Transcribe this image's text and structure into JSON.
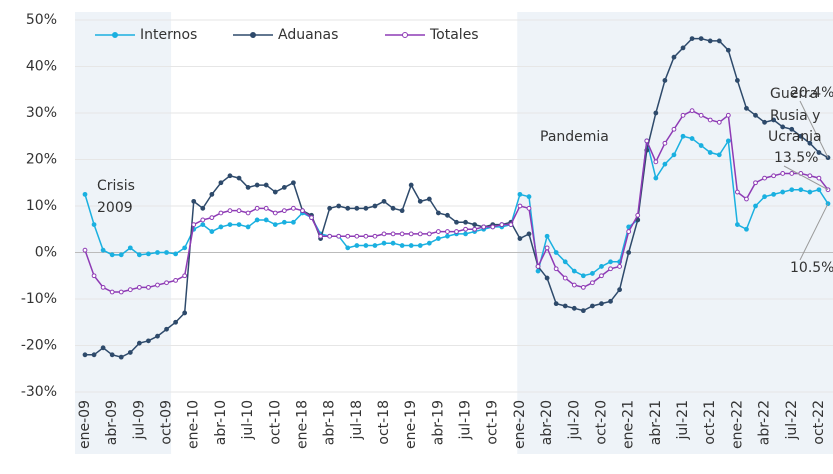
{
  "chart_data": {
    "type": "line",
    "categories": [
      "ene-09",
      null,
      null,
      "abr-09",
      null,
      null,
      "jul-09",
      null,
      null,
      "oct-09",
      null,
      null,
      "ene-10",
      null,
      null,
      "abr-10",
      null,
      null,
      "jul-10",
      null,
      null,
      "oct-10",
      null,
      null,
      "ene-18",
      null,
      null,
      "abr-18",
      null,
      null,
      "jul-18",
      null,
      null,
      "oct-18",
      null,
      null,
      "ene-19",
      null,
      null,
      "abr-19",
      null,
      null,
      "jul-19",
      null,
      null,
      "oct-19",
      null,
      null,
      "ene-20",
      null,
      null,
      "abr-20",
      null,
      null,
      "jul-20",
      null,
      null,
      "oct-20",
      null,
      null,
      "ene-21",
      null,
      null,
      "abr-21",
      null,
      null,
      "jul-21",
      null,
      null,
      "oct-21",
      null,
      null,
      "ene-22",
      null,
      null,
      "abr-22",
      null,
      null,
      "jul-22",
      null,
      null,
      "oct-22",
      null
    ],
    "series": [
      {
        "name": "Internos",
        "color": "#1ab0e0",
        "values": [
          12.5,
          6,
          0.5,
          -0.5,
          -0.5,
          1,
          -0.5,
          -0.3,
          0,
          0,
          -0.3,
          1,
          5,
          6,
          4.5,
          5.5,
          6,
          6,
          5.5,
          7,
          7,
          6,
          6.5,
          6.5,
          8.5,
          7.5,
          4,
          3.5,
          3.5,
          1,
          1.5,
          1.5,
          1.5,
          2,
          2,
          1.5,
          1.5,
          1.5,
          2,
          3,
          3.5,
          4,
          4,
          4.5,
          5,
          5.5,
          5.5,
          6,
          12.5,
          12,
          -4,
          3.5,
          0,
          -2,
          -4,
          -5,
          -4.5,
          -3,
          -2,
          -2,
          5.5,
          7,
          24,
          16,
          19,
          21,
          25,
          24.5,
          23,
          21.5,
          21,
          24,
          6,
          5,
          10,
          12,
          12.5,
          13,
          13.5,
          13.5,
          13,
          13.5,
          10.5
        ],
        "value_labels": [
          null,
          null,
          null,
          null,
          null,
          null,
          null,
          null,
          null,
          null,
          null,
          null,
          null,
          null,
          null,
          null,
          null,
          null,
          null,
          null,
          null,
          null,
          null,
          null,
          null,
          null,
          null,
          null,
          null,
          null,
          null,
          null,
          null,
          null,
          null,
          null,
          null,
          null,
          null,
          null,
          null,
          null,
          null,
          null,
          null,
          null,
          null,
          null,
          null,
          null,
          null,
          null,
          null,
          null,
          null,
          null,
          null,
          null,
          null,
          null,
          null,
          null,
          null,
          null,
          null,
          null,
          null,
          null,
          null,
          null,
          null,
          null,
          null,
          null,
          null,
          null,
          null,
          null,
          null,
          null,
          null,
          null,
          "10.5%"
        ]
      },
      {
        "name": "Aduanas",
        "color": "#2e4a6b",
        "values": [
          -22,
          -22,
          -20.5,
          -22,
          -22.5,
          -21.5,
          -19.5,
          -19,
          -18,
          -16.5,
          -15,
          -13,
          11,
          9.5,
          12.5,
          15,
          16.5,
          16,
          14,
          14.5,
          14.5,
          13,
          14,
          15,
          9,
          8,
          3,
          9.5,
          10,
          9.5,
          9.5,
          9.5,
          10,
          11,
          9.5,
          9,
          14.5,
          11,
          11.5,
          8.5,
          8,
          6.5,
          6.5,
          6,
          5.5,
          6,
          6,
          6.5,
          3,
          4,
          -3,
          -5.5,
          -11,
          -11.5,
          -12,
          -12.5,
          -11.5,
          -11,
          -10.5,
          -8,
          0,
          7,
          22,
          30,
          37,
          42,
          44,
          46,
          46,
          45.5,
          45.5,
          43.5,
          37,
          31,
          29.5,
          28,
          28.5,
          27,
          26.5,
          25,
          23.5,
          21.5,
          20.4
        ],
        "value_labels": [
          null,
          null,
          null,
          null,
          null,
          null,
          null,
          null,
          null,
          null,
          null,
          null,
          null,
          null,
          null,
          null,
          null,
          null,
          null,
          null,
          null,
          null,
          null,
          null,
          null,
          null,
          null,
          null,
          null,
          null,
          null,
          null,
          null,
          null,
          null,
          null,
          null,
          null,
          null,
          null,
          null,
          null,
          null,
          null,
          null,
          null,
          null,
          null,
          null,
          null,
          null,
          null,
          null,
          null,
          null,
          null,
          null,
          null,
          null,
          null,
          null,
          null,
          null,
          null,
          null,
          null,
          null,
          null,
          null,
          null,
          null,
          null,
          null,
          null,
          null,
          null,
          null,
          null,
          null,
          null,
          null,
          null,
          "20.4%"
        ]
      },
      {
        "name": "Totales",
        "color": "#8e3bb5",
        "values": [
          0.5,
          -5,
          -7.5,
          -8.5,
          -8.5,
          -8,
          -7.5,
          -7.5,
          -7,
          -6.5,
          -6,
          -5,
          6,
          7,
          7.5,
          8.5,
          9,
          9,
          8.5,
          9.5,
          9.5,
          8.5,
          9,
          9.5,
          9,
          7.5,
          3.5,
          3.5,
          3.5,
          3.5,
          3.5,
          3.5,
          3.5,
          4,
          4,
          4,
          4,
          4,
          4,
          4.5,
          4.5,
          4.5,
          5,
          5,
          5.5,
          5.5,
          6,
          6,
          10,
          9.5,
          -3,
          1,
          -3.5,
          -5.5,
          -7,
          -7.5,
          -6.5,
          -5,
          -3.5,
          -3,
          4.5,
          8,
          24,
          19.5,
          23.5,
          26.5,
          29.5,
          30.5,
          29.5,
          28.5,
          28,
          29.5,
          13,
          11.5,
          15,
          16,
          16.5,
          17,
          17,
          17,
          16.5,
          16,
          13.5
        ],
        "value_labels": [
          null,
          null,
          null,
          null,
          null,
          null,
          null,
          null,
          null,
          null,
          null,
          null,
          null,
          null,
          null,
          null,
          null,
          null,
          null,
          null,
          null,
          null,
          null,
          null,
          null,
          null,
          null,
          null,
          null,
          null,
          null,
          null,
          null,
          null,
          null,
          null,
          null,
          null,
          null,
          null,
          null,
          null,
          null,
          null,
          null,
          null,
          null,
          null,
          null,
          null,
          null,
          null,
          null,
          null,
          null,
          null,
          null,
          null,
          null,
          null,
          null,
          null,
          null,
          null,
          null,
          null,
          null,
          null,
          null,
          null,
          null,
          null,
          null,
          null,
          null,
          null,
          null,
          null,
          null,
          null,
          null,
          null,
          "13.5%"
        ]
      }
    ],
    "ylim": [
      -30,
      50
    ],
    "yticks": [
      {
        "value": -30,
        "label": "-30%"
      },
      {
        "value": -20,
        "label": "-20%"
      },
      {
        "value": -10,
        "label": "-10%"
      },
      {
        "value": 0,
        "label": "0%"
      },
      {
        "value": 10,
        "label": "10%"
      },
      {
        "value": 20,
        "label": "20%"
      },
      {
        "value": 30,
        "label": "30%"
      },
      {
        "value": 40,
        "label": "40%"
      },
      {
        "value": 50,
        "label": "50%"
      }
    ],
    "grid": true,
    "annotations": [
      "Crisis",
      "2009",
      "Pandemia",
      "Guerra",
      "Rusia y",
      "Ucrania"
    ],
    "annotation_color": "#1ab0e0"
  }
}
